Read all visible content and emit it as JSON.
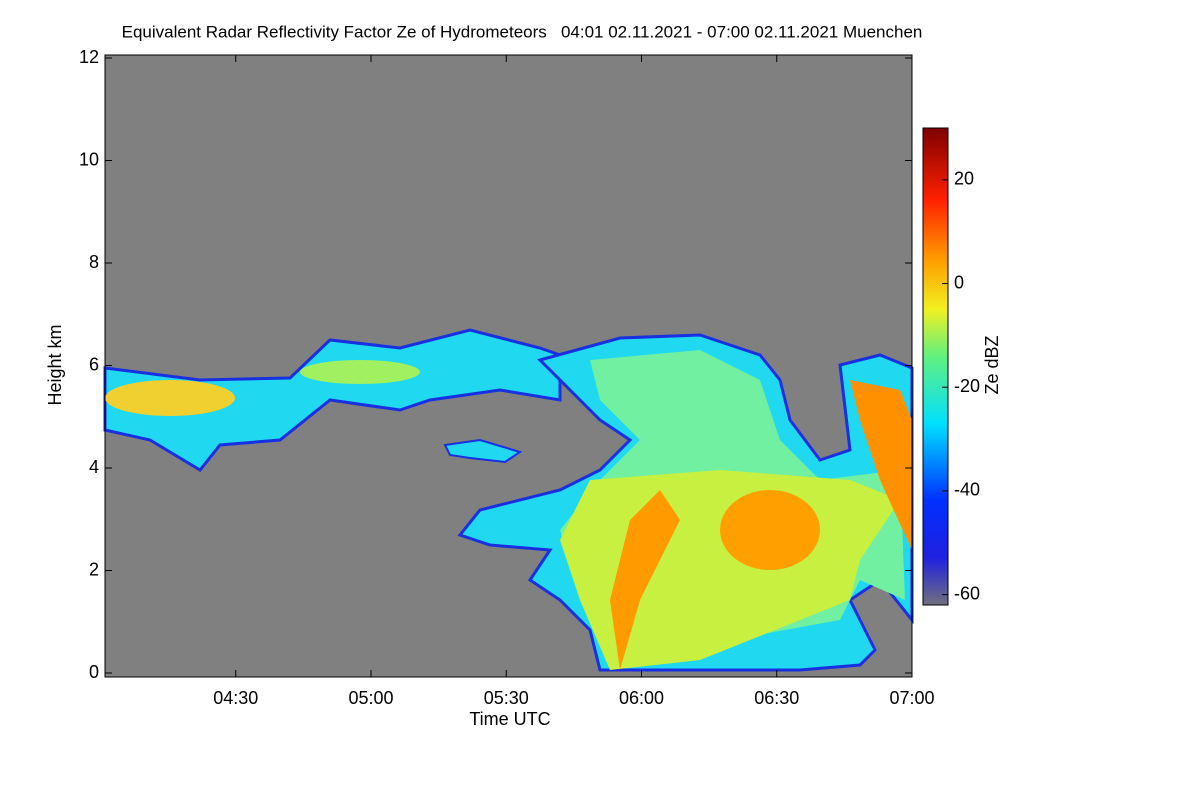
{
  "chart_data": {
    "type": "heatmap",
    "title": "Equivalent Radar Reflectivity Factor Ze of Hydrometeors   04:01 02.11.2021 - 07:00 02.11.2021 Muenchen",
    "x_label": "Time UTC",
    "y_label": "Height km",
    "colorbar_label": "Ze dBZ",
    "xlim": [
      241,
      420
    ],
    "xticks": [
      {
        "value": 270,
        "label": "04:30"
      },
      {
        "value": 300,
        "label": "05:00"
      },
      {
        "value": 330,
        "label": "05:30"
      },
      {
        "value": 360,
        "label": "06:00"
      },
      {
        "value": 390,
        "label": "06:30"
      },
      {
        "value": 420,
        "label": "07:00"
      }
    ],
    "ylim": [
      0,
      12
    ],
    "yticks": [
      0,
      2,
      4,
      6,
      8,
      10,
      12
    ],
    "zlim": [
      -62,
      30
    ],
    "zticks": [
      -60,
      -40,
      -20,
      0,
      20
    ]
  }
}
